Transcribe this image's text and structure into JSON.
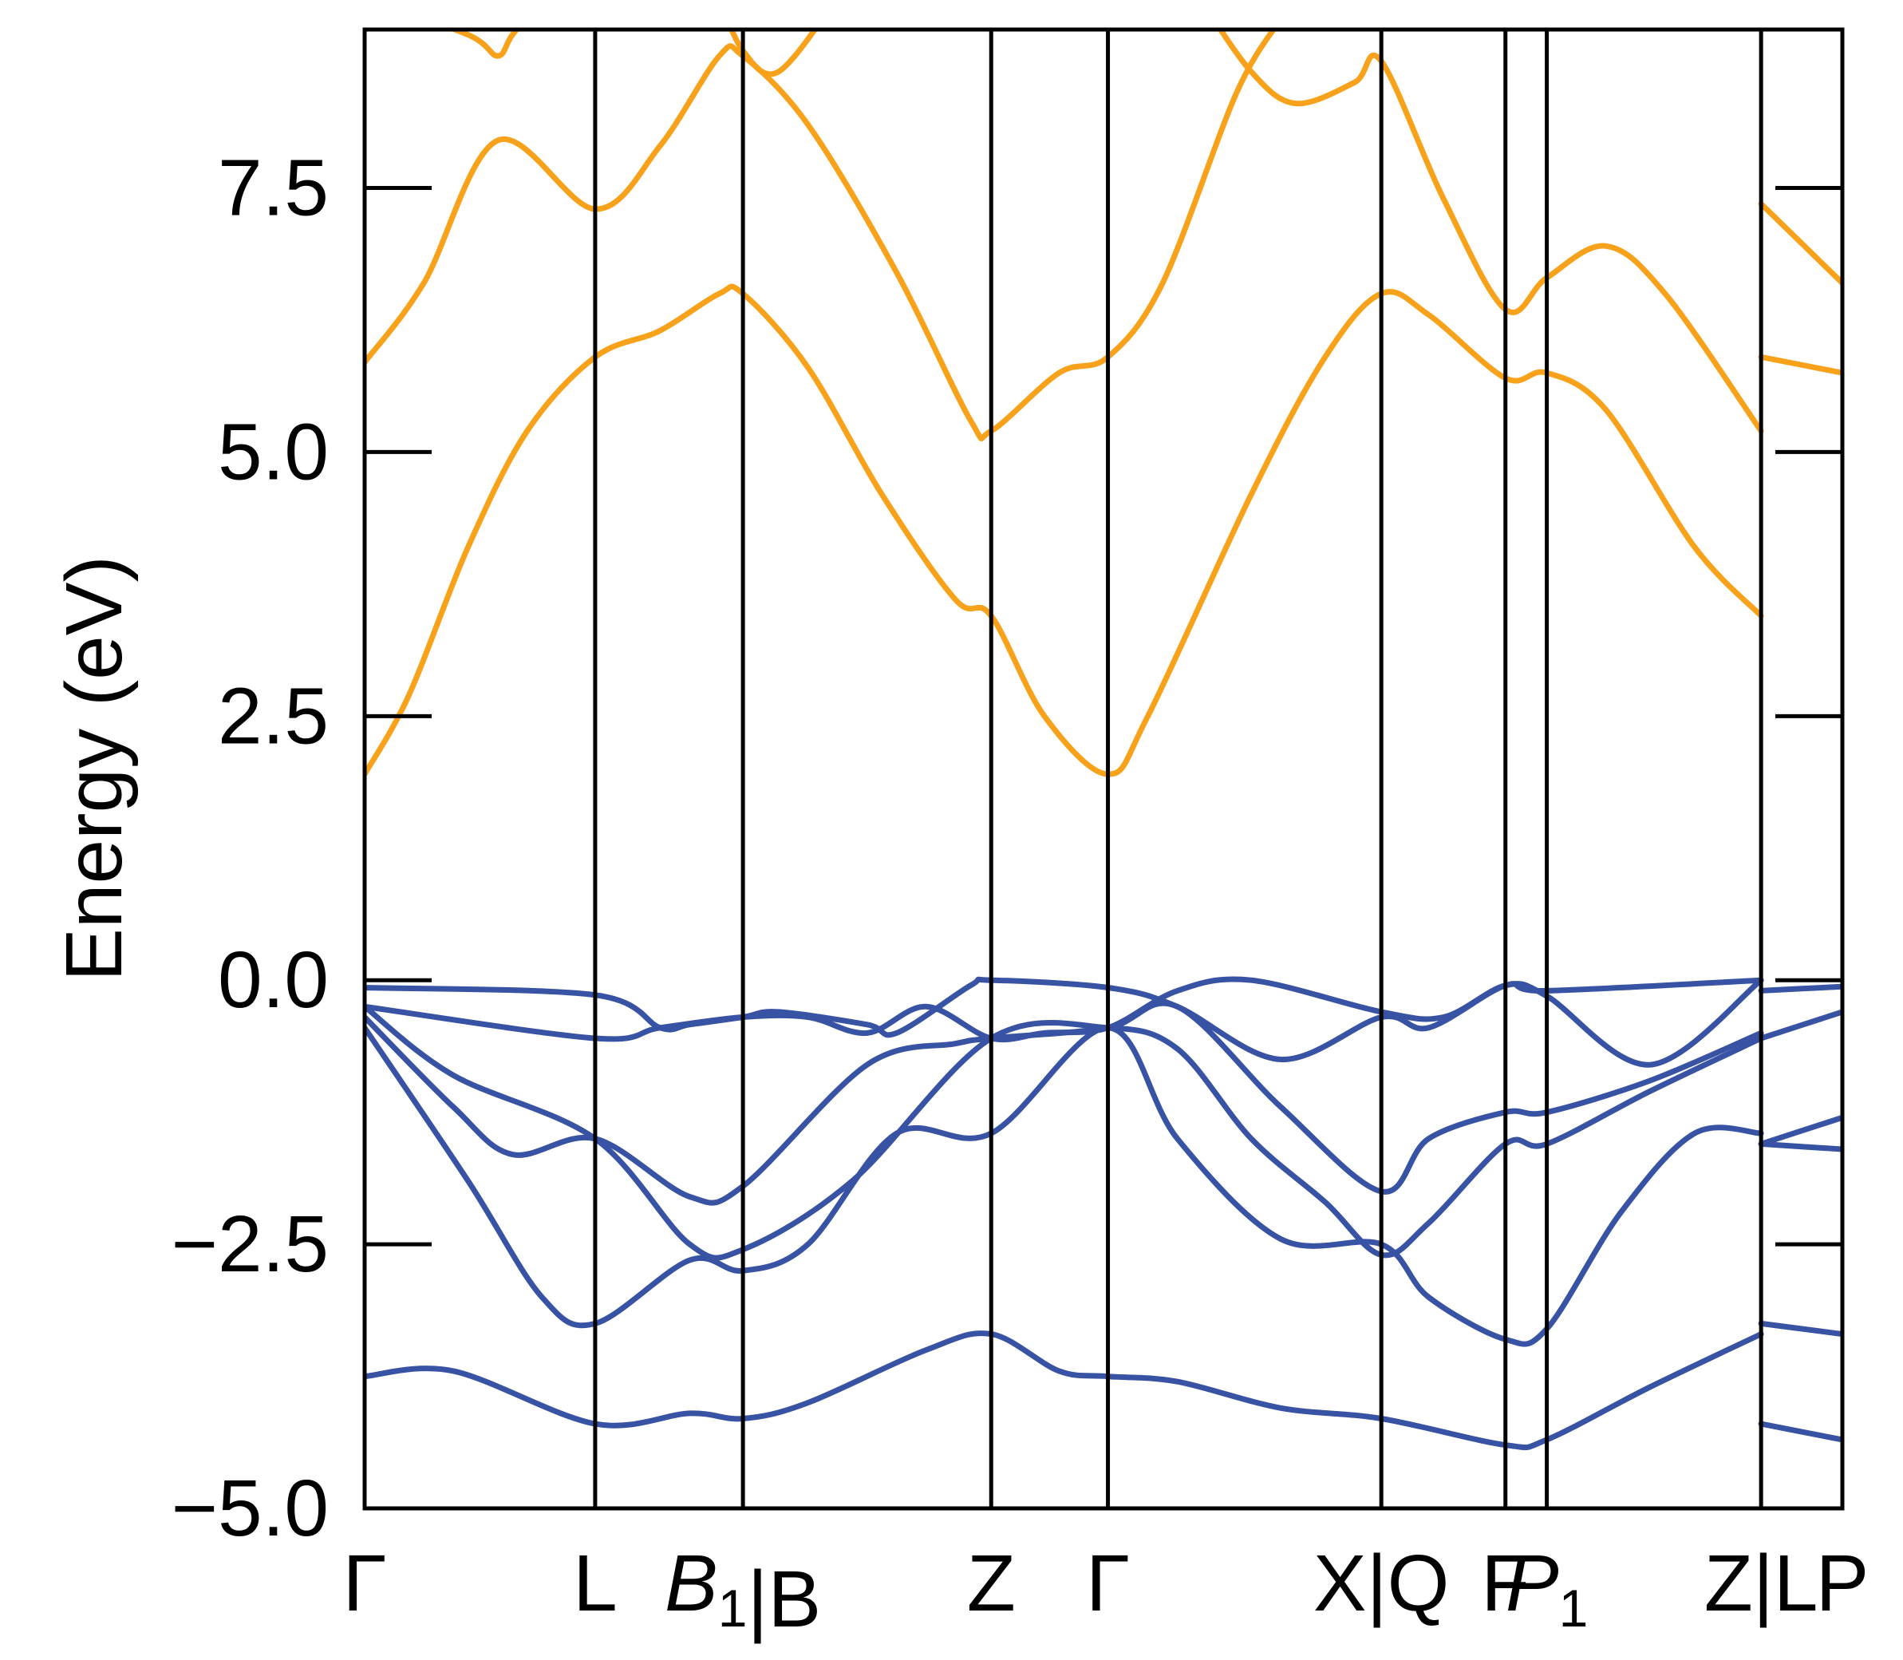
{
  "chart_data": {
    "type": "line",
    "title": "",
    "xlabel": "",
    "ylabel": "Energy (eV)",
    "ylim": [
      -5.0,
      9.0
    ],
    "y_ticks": [
      "−5.0",
      "−2.5",
      "0.0",
      "2.5",
      "5.0",
      "7.5"
    ],
    "y_tick_values": [
      -5.0,
      -2.5,
      0.0,
      2.5,
      5.0,
      7.5
    ],
    "kpath": {
      "segments": [
        {
          "points": [
            {
              "x": 0.0,
              "label": "Γ",
              "italic": false
            },
            {
              "x": 0.156,
              "label": "L",
              "italic": false
            },
            {
              "x": 0.256,
              "label": "B",
              "sub": "1",
              "italic": true
            }
          ]
        },
        {
          "points": [
            {
              "x": 0.256,
              "label": "B",
              "italic": false
            },
            {
              "x": 0.424,
              "label": "Z",
              "italic": false
            },
            {
              "x": 0.503,
              "label": "Γ",
              "italic": false
            },
            {
              "x": 0.688,
              "label": "X",
              "italic": false
            }
          ]
        },
        {
          "points": [
            {
              "x": 0.688,
              "label": "Q",
              "italic": false
            },
            {
              "x": 0.772,
              "label": "F",
              "italic": false
            },
            {
              "x": 0.8,
              "label": "P",
              "sub": "1",
              "italic": true
            },
            {
              "x": 0.945,
              "label": "Z",
              "italic": false
            }
          ]
        },
        {
          "points": [
            {
              "x": 0.945,
              "label": "L",
              "italic": false
            },
            {
              "x": 1.0,
              "label": "P",
              "italic": false
            }
          ]
        }
      ],
      "breaks": [
        0.256,
        0.688,
        0.945
      ],
      "break_separator": "|"
    },
    "series": [
      {
        "kind": "conduction",
        "color": "#f7a21a",
        "segments": [
          [
            [
              0.0,
              1.95
            ],
            [
              0.03,
              2.7
            ],
            [
              0.07,
              4.1
            ],
            [
              0.11,
              5.2
            ],
            [
              0.156,
              5.9
            ],
            [
              0.2,
              6.15
            ],
            [
              0.24,
              6.5
            ],
            [
              0.256,
              6.5
            ],
            [
              0.3,
              5.8
            ],
            [
              0.35,
              4.6
            ],
            [
              0.4,
              3.6
            ],
            [
              0.424,
              3.45
            ],
            [
              0.46,
              2.5
            ],
            [
              0.503,
              1.95
            ],
            [
              0.53,
              2.5
            ],
            [
              0.6,
              4.6
            ],
            [
              0.65,
              5.9
            ],
            [
              0.688,
              6.5
            ],
            [
              0.72,
              6.3
            ],
            [
              0.772,
              5.7
            ],
            [
              0.8,
              5.75
            ],
            [
              0.84,
              5.4
            ],
            [
              0.9,
              4.1
            ],
            [
              0.945,
              3.45
            ]
          ],
          [
            [
              0.0,
              5.85
            ],
            [
              0.04,
              6.6
            ],
            [
              0.09,
              7.95
            ],
            [
              0.156,
              7.3
            ],
            [
              0.2,
              7.9
            ],
            [
              0.24,
              8.75
            ],
            [
              0.256,
              8.75
            ],
            [
              0.3,
              8.1
            ],
            [
              0.36,
              6.7
            ],
            [
              0.41,
              5.3
            ],
            [
              0.424,
              5.2
            ],
            [
              0.47,
              5.75
            ],
            [
              0.503,
              5.9
            ],
            [
              0.54,
              6.6
            ],
            [
              0.59,
              8.4
            ],
            [
              0.62,
              9.1
            ]
          ],
          [
            [
              0.0,
              9.3
            ],
            [
              0.07,
              8.95
            ],
            [
              0.09,
              8.75
            ],
            [
              0.1,
              8.95
            ],
            [
              0.12,
              9.3
            ]
          ],
          [
            [
              0.24,
              9.3
            ],
            [
              0.256,
              8.8
            ],
            [
              0.28,
              8.6
            ],
            [
              0.32,
              9.3
            ]
          ],
          [
            [
              0.565,
              9.3
            ],
            [
              0.6,
              8.6
            ],
            [
              0.63,
              8.3
            ],
            [
              0.67,
              8.5
            ],
            [
              0.688,
              8.7
            ],
            [
              0.73,
              7.4
            ],
            [
              0.772,
              6.35
            ],
            [
              0.8,
              6.65
            ],
            [
              0.84,
              6.95
            ],
            [
              0.88,
              6.5
            ],
            [
              0.945,
              5.2
            ]
          ],
          [
            [
              0.945,
              7.35
            ],
            [
              1.0,
              6.6
            ]
          ],
          [
            [
              0.945,
              5.9
            ],
            [
              1.0,
              5.75
            ]
          ]
        ]
      },
      {
        "kind": "valence",
        "color": "#3853a4",
        "segments": [
          [
            [
              0.0,
              -0.07
            ],
            [
              0.156,
              -0.14
            ],
            [
              0.2,
              -0.45
            ],
            [
              0.22,
              -0.42
            ],
            [
              0.256,
              -0.35
            ],
            [
              0.28,
              -0.3
            ],
            [
              0.34,
              -0.42
            ],
            [
              0.36,
              -0.5
            ],
            [
              0.41,
              -0.05
            ],
            [
              0.424,
              0.0
            ],
            [
              0.503,
              -0.07
            ],
            [
              0.55,
              -0.25
            ],
            [
              0.62,
              -0.75
            ],
            [
              0.688,
              -0.35
            ],
            [
              0.72,
              -0.45
            ],
            [
              0.772,
              -0.05
            ],
            [
              0.8,
              -0.1
            ],
            [
              0.945,
              0.0
            ]
          ],
          [
            [
              0.0,
              -0.25
            ],
            [
              0.156,
              -0.55
            ],
            [
              0.2,
              -0.45
            ],
            [
              0.256,
              -0.35
            ],
            [
              0.3,
              -0.35
            ],
            [
              0.34,
              -0.5
            ],
            [
              0.38,
              -0.25
            ],
            [
              0.424,
              -0.55
            ],
            [
              0.46,
              -0.5
            ],
            [
              0.503,
              -0.45
            ],
            [
              0.55,
              -0.1
            ],
            [
              0.6,
              0.0
            ],
            [
              0.688,
              -0.3
            ],
            [
              0.73,
              -0.35
            ],
            [
              0.772,
              -0.05
            ],
            [
              0.8,
              -0.15
            ],
            [
              0.87,
              -0.8
            ],
            [
              0.945,
              0.0
            ]
          ],
          [
            [
              0.0,
              -0.35
            ],
            [
              0.06,
              -1.2
            ],
            [
              0.1,
              -1.65
            ],
            [
              0.156,
              -1.5
            ],
            [
              0.22,
              -2.05
            ],
            [
              0.256,
              -1.95
            ],
            [
              0.34,
              -0.8
            ],
            [
              0.4,
              -0.6
            ],
            [
              0.424,
              -0.55
            ],
            [
              0.503,
              -0.45
            ],
            [
              0.55,
              -0.25
            ],
            [
              0.62,
              -1.2
            ],
            [
              0.688,
              -2.0
            ],
            [
              0.72,
              -1.5
            ],
            [
              0.772,
              -1.25
            ],
            [
              0.8,
              -1.25
            ],
            [
              0.87,
              -0.95
            ],
            [
              0.945,
              -0.5
            ]
          ],
          [
            [
              0.0,
              -0.25
            ],
            [
              0.06,
              -0.9
            ],
            [
              0.156,
              -1.5
            ],
            [
              0.22,
              -2.5
            ],
            [
              0.256,
              -2.55
            ],
            [
              0.33,
              -1.9
            ],
            [
              0.424,
              -0.55
            ],
            [
              0.503,
              -0.45
            ],
            [
              0.55,
              -0.65
            ],
            [
              0.6,
              -1.5
            ],
            [
              0.65,
              -2.1
            ],
            [
              0.688,
              -2.6
            ],
            [
              0.72,
              -2.3
            ],
            [
              0.772,
              -1.55
            ],
            [
              0.8,
              -1.55
            ],
            [
              0.87,
              -1.05
            ],
            [
              0.945,
              -0.55
            ]
          ],
          [
            [
              0.0,
              -0.45
            ],
            [
              0.07,
              -1.9
            ],
            [
              0.12,
              -3.0
            ],
            [
              0.156,
              -3.25
            ],
            [
              0.22,
              -2.65
            ],
            [
              0.256,
              -2.75
            ],
            [
              0.3,
              -2.5
            ],
            [
              0.36,
              -1.45
            ],
            [
              0.424,
              -1.45
            ],
            [
              0.503,
              -0.45
            ],
            [
              0.55,
              -1.5
            ],
            [
              0.62,
              -2.45
            ],
            [
              0.688,
              -2.5
            ],
            [
              0.72,
              -3.0
            ],
            [
              0.772,
              -3.4
            ],
            [
              0.8,
              -3.3
            ],
            [
              0.85,
              -2.2
            ],
            [
              0.9,
              -1.45
            ],
            [
              0.945,
              -1.45
            ]
          ],
          [
            [
              0.0,
              -3.75
            ],
            [
              0.06,
              -3.7
            ],
            [
              0.156,
              -4.2
            ],
            [
              0.22,
              -4.1
            ],
            [
              0.256,
              -4.15
            ],
            [
              0.3,
              -4.0
            ],
            [
              0.38,
              -3.5
            ],
            [
              0.424,
              -3.35
            ],
            [
              0.47,
              -3.7
            ],
            [
              0.503,
              -3.75
            ],
            [
              0.55,
              -3.8
            ],
            [
              0.62,
              -4.05
            ],
            [
              0.688,
              -4.15
            ],
            [
              0.772,
              -4.4
            ],
            [
              0.8,
              -4.35
            ],
            [
              0.87,
              -3.85
            ],
            [
              0.945,
              -3.35
            ]
          ],
          [
            [
              0.945,
              -0.1
            ],
            [
              1.0,
              -0.06
            ]
          ],
          [
            [
              0.945,
              -0.55
            ],
            [
              1.0,
              -0.3
            ]
          ],
          [
            [
              0.945,
              -1.55
            ],
            [
              1.0,
              -1.3
            ]
          ],
          [
            [
              0.945,
              -1.55
            ],
            [
              1.0,
              -1.6
            ]
          ],
          [
            [
              0.945,
              -3.25
            ],
            [
              1.0,
              -3.35
            ]
          ],
          [
            [
              0.945,
              -4.2
            ],
            [
              1.0,
              -4.35
            ]
          ]
        ]
      }
    ],
    "grid": false,
    "legend": "none",
    "frame_color": "#000000"
  }
}
